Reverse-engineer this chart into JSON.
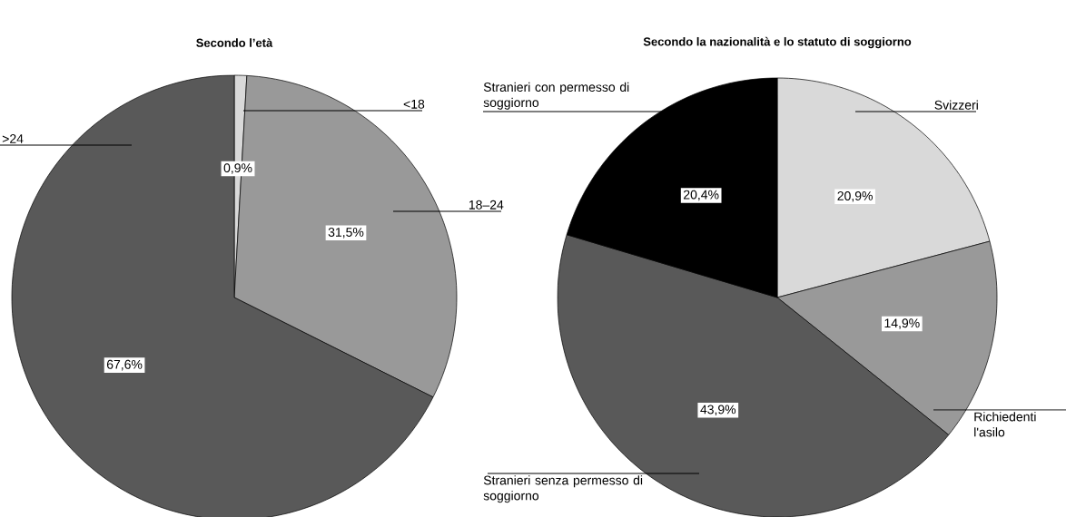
{
  "chart_data": [
    {
      "type": "pie",
      "title": "Secondo l’età",
      "categories": [
        "<18",
        "18–24",
        ">24"
      ],
      "values": [
        0.9,
        31.5,
        67.6
      ],
      "colors": [
        "#d9d9d9",
        "#999999",
        "#595959"
      ],
      "value_labels": [
        "0,9%",
        "31,5%",
        "67,6%"
      ]
    },
    {
      "type": "pie",
      "title": "Secondo la nazionalità e lo statuto di soggiorno",
      "categories": [
        "Svizzeri",
        "Richiedenti l'asilo",
        "Stranieri senza permesso di soggiorno",
        "Stranieri con permesso di soggiorno"
      ],
      "values": [
        20.9,
        14.9,
        43.9,
        20.4
      ],
      "colors": [
        "#d9d9d9",
        "#999999",
        "#595959",
        "#000000"
      ],
      "value_labels": [
        "20,9%",
        "14,9%",
        "43,9%",
        "20,4%"
      ]
    }
  ]
}
